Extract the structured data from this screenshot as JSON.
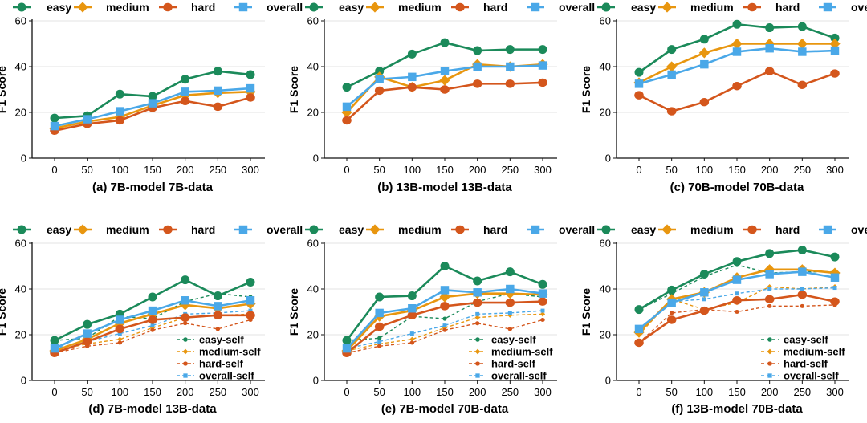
{
  "colors": {
    "easy": "#1b8a5a",
    "medium": "#e8960f",
    "hard": "#d4561c",
    "overall": "#4aa8e8"
  },
  "legend_labels": [
    "easy",
    "medium",
    "hard",
    "overall"
  ],
  "self_legend_labels": [
    "easy-self",
    "medium-self",
    "hard-self",
    "overall-self"
  ],
  "chart_data": [
    {
      "type": "line",
      "title": "(a) 7B-model 7B-data",
      "ylabel": "F1 Score",
      "x": [
        0,
        50,
        100,
        150,
        200,
        250,
        300
      ],
      "ylim": [
        0,
        60
      ],
      "yticks": [
        0,
        20,
        40,
        60
      ],
      "series": [
        {
          "name": "easy",
          "values": [
            17.5,
            18.5,
            28,
            27,
            34.5,
            38,
            36.5
          ]
        },
        {
          "name": "medium",
          "values": [
            13,
            16,
            18,
            23,
            27.5,
            28.5,
            29
          ]
        },
        {
          "name": "hard",
          "values": [
            12,
            15,
            16.5,
            22,
            25,
            22.5,
            26.5
          ]
        },
        {
          "name": "overall",
          "values": [
            14,
            17,
            20.5,
            24,
            29,
            29.5,
            30.5
          ]
        }
      ]
    },
    {
      "type": "line",
      "title": "(b) 13B-model 13B-data",
      "ylabel": "F1 Score",
      "x": [
        0,
        50,
        100,
        150,
        200,
        250,
        300
      ],
      "ylim": [
        0,
        60
      ],
      "yticks": [
        0,
        20,
        40,
        60
      ],
      "series": [
        {
          "name": "easy",
          "values": [
            31,
            38,
            45.5,
            50.5,
            47,
            47.5,
            47.5
          ]
        },
        {
          "name": "medium",
          "values": [
            20,
            35.5,
            31,
            34,
            41,
            40,
            41
          ]
        },
        {
          "name": "hard",
          "values": [
            16.5,
            29.5,
            31,
            30,
            32.5,
            32.5,
            33
          ]
        },
        {
          "name": "overall",
          "values": [
            22.5,
            34.5,
            35.5,
            38,
            40,
            40,
            40.5
          ]
        }
      ]
    },
    {
      "type": "line",
      "title": "(c) 70B-model 70B-data",
      "ylabel": "F1 Score",
      "x": [
        0,
        50,
        100,
        150,
        200,
        250,
        300
      ],
      "ylim": [
        0,
        60
      ],
      "yticks": [
        0,
        20,
        40,
        60
      ],
      "series": [
        {
          "name": "easy",
          "values": [
            37.5,
            47.5,
            52,
            58.5,
            57,
            57.5,
            52.5
          ]
        },
        {
          "name": "medium",
          "values": [
            33,
            40,
            46,
            50,
            50,
            50,
            50
          ]
        },
        {
          "name": "hard",
          "values": [
            27.5,
            20.5,
            24.5,
            31.5,
            38,
            32,
            37
          ]
        },
        {
          "name": "overall",
          "values": [
            32.5,
            36.5,
            41,
            46.5,
            48,
            46.5,
            47
          ]
        }
      ]
    },
    {
      "type": "line",
      "title": "(d) 7B-model 13B-data",
      "ylabel": "F1 Score",
      "x": [
        0,
        50,
        100,
        150,
        200,
        250,
        300
      ],
      "ylim": [
        0,
        60
      ],
      "yticks": [
        0,
        20,
        40,
        60
      ],
      "series": [
        {
          "name": "easy",
          "values": [
            17.5,
            24.5,
            29,
            36.5,
            44,
            37,
            43
          ]
        },
        {
          "name": "medium",
          "values": [
            13,
            18,
            25,
            29,
            33,
            31.5,
            33.5
          ]
        },
        {
          "name": "hard",
          "values": [
            12,
            17,
            22.5,
            26.5,
            27.5,
            28.5,
            28.5
          ]
        },
        {
          "name": "overall",
          "values": [
            14,
            20.5,
            26.5,
            30.5,
            35,
            32.5,
            35
          ]
        },
        {
          "name": "easy-self",
          "dashed": true,
          "values": [
            17.5,
            18.5,
            28,
            27,
            34.5,
            38,
            36.5
          ]
        },
        {
          "name": "medium-self",
          "dashed": true,
          "values": [
            13,
            16,
            18,
            23,
            27.5,
            28.5,
            29
          ]
        },
        {
          "name": "hard-self",
          "dashed": true,
          "values": [
            12,
            15,
            16.5,
            22,
            25,
            22.5,
            26.5
          ]
        },
        {
          "name": "overall-self",
          "dashed": true,
          "values": [
            14,
            17,
            20.5,
            24,
            29,
            29.5,
            30.5
          ]
        }
      ]
    },
    {
      "type": "line",
      "title": "(e) 7B-model 70B-data",
      "ylabel": "F1 Score",
      "x": [
        0,
        50,
        100,
        150,
        200,
        250,
        300
      ],
      "ylim": [
        0,
        60
      ],
      "yticks": [
        0,
        20,
        40,
        60
      ],
      "series": [
        {
          "name": "easy",
          "values": [
            17.5,
            36.5,
            37,
            50,
            43.5,
            47.5,
            42
          ]
        },
        {
          "name": "medium",
          "values": [
            13,
            28,
            30.5,
            36.5,
            38,
            38,
            37.5
          ]
        },
        {
          "name": "hard",
          "values": [
            12,
            23.5,
            28.5,
            32.5,
            34,
            34,
            34.5
          ]
        },
        {
          "name": "overall",
          "values": [
            14,
            29.5,
            31.5,
            39.5,
            38.5,
            40,
            38
          ]
        },
        {
          "name": "easy-self",
          "dashed": true,
          "values": [
            17.5,
            18.5,
            28,
            27,
            34.5,
            38,
            36.5
          ]
        },
        {
          "name": "medium-self",
          "dashed": true,
          "values": [
            13,
            16,
            18,
            23,
            27.5,
            28.5,
            29
          ]
        },
        {
          "name": "hard-self",
          "dashed": true,
          "values": [
            12,
            15,
            16.5,
            22,
            25,
            22.5,
            26.5
          ]
        },
        {
          "name": "overall-self",
          "dashed": true,
          "values": [
            14,
            17,
            20.5,
            24,
            29,
            29.5,
            30.5
          ]
        }
      ]
    },
    {
      "type": "line",
      "title": "(f) 13B-model 70B-data",
      "ylabel": "F1 Score",
      "x": [
        0,
        50,
        100,
        150,
        200,
        250,
        300
      ],
      "ylim": [
        0,
        60
      ],
      "yticks": [
        0,
        20,
        40,
        60
      ],
      "series": [
        {
          "name": "easy",
          "values": [
            31,
            39.5,
            46.5,
            52,
            55.5,
            57,
            54
          ]
        },
        {
          "name": "medium",
          "values": [
            21,
            35.5,
            38.5,
            45,
            48.5,
            48.5,
            47
          ]
        },
        {
          "name": "hard",
          "values": [
            16.5,
            26.5,
            30.5,
            35,
            35.5,
            37.5,
            34.5
          ]
        },
        {
          "name": "overall",
          "values": [
            22.5,
            34,
            38.5,
            44,
            46.5,
            47.5,
            45
          ]
        },
        {
          "name": "easy-self",
          "dashed": true,
          "values": [
            31,
            38,
            45.5,
            50.5,
            47,
            47.5,
            47.5
          ]
        },
        {
          "name": "medium-self",
          "dashed": true,
          "values": [
            20,
            35.5,
            31,
            34,
            41,
            40,
            41
          ]
        },
        {
          "name": "hard-self",
          "dashed": true,
          "values": [
            16.5,
            29.5,
            31,
            30,
            32.5,
            32.5,
            33
          ]
        },
        {
          "name": "overall-self",
          "dashed": true,
          "values": [
            22.5,
            34.5,
            35.5,
            38,
            40,
            40,
            40.5
          ]
        }
      ]
    }
  ]
}
